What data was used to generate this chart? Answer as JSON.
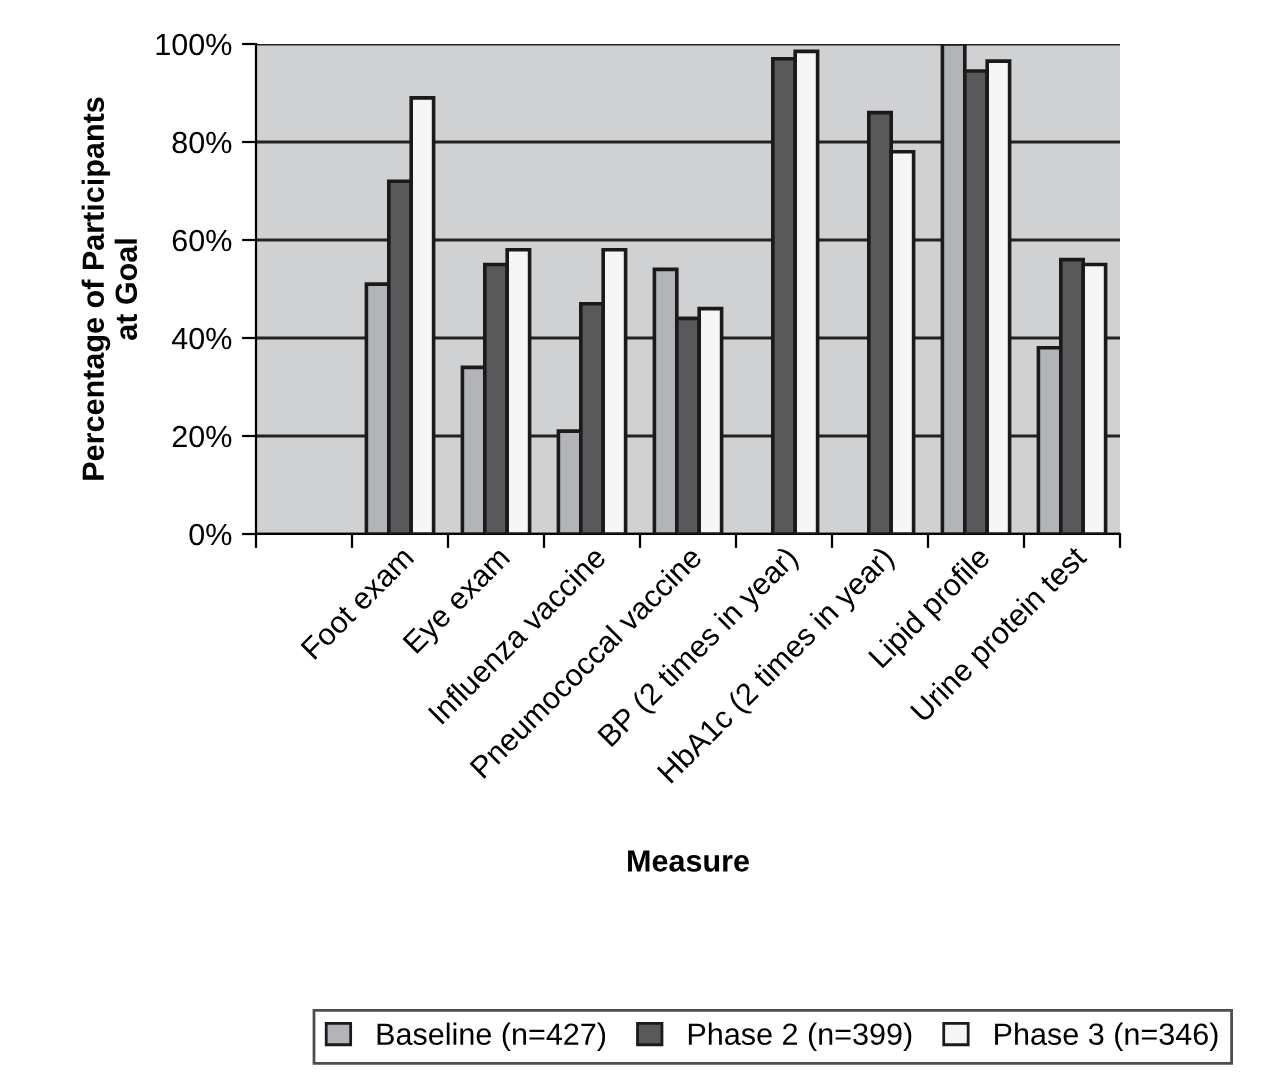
{
  "chart_data": {
    "type": "bar",
    "xlabel": "Measure",
    "ylabel": "Percentage of Participants\nat Goal",
    "categories": [
      null,
      "Foot exam",
      "Eye exam",
      "Influenza vaccine",
      "Pneumococcal vaccine",
      "BP (2 times in year)",
      "HbA1c (2 times in year)",
      "Lipid profile",
      "Urine protein test"
    ],
    "series": [
      {
        "name": "Baseline (n=427)",
        "color": "#b3b4b8",
        "values": [
          null,
          51,
          34,
          21,
          54,
          null,
          null,
          100,
          38
        ]
      },
      {
        "name": "Phase 2 (n=399)",
        "color": "#58595b",
        "values": [
          null,
          72,
          55,
          47,
          44,
          97,
          86,
          94.5,
          56
        ]
      },
      {
        "name": "Phase 3 (n=346)",
        "color": "#f5f5f5",
        "values": [
          null,
          89,
          58,
          58,
          46,
          98.5,
          78,
          96.5,
          55
        ]
      }
    ],
    "ylim": [
      0,
      100
    ],
    "yticks": [
      {
        "value": 0,
        "label": "0%"
      },
      {
        "value": 20,
        "label": "20%"
      },
      {
        "value": 40,
        "label": "40%"
      },
      {
        "value": 60,
        "label": "60%"
      },
      {
        "value": 80,
        "label": "80%"
      },
      {
        "value": 100,
        "label": "100%"
      }
    ],
    "grid": "y",
    "legend": "bottom"
  }
}
